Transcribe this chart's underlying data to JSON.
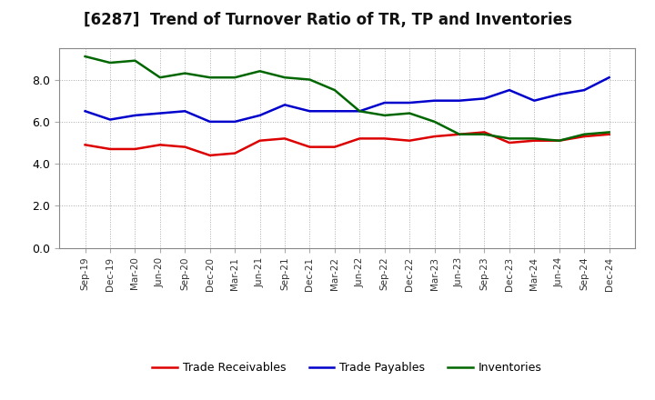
{
  "title": "[6287]  Trend of Turnover Ratio of TR, TP and Inventories",
  "x_labels": [
    "Sep-19",
    "Dec-19",
    "Mar-20",
    "Jun-20",
    "Sep-20",
    "Dec-20",
    "Mar-21",
    "Jun-21",
    "Sep-21",
    "Dec-21",
    "Mar-22",
    "Jun-22",
    "Sep-22",
    "Dec-22",
    "Mar-23",
    "Jun-23",
    "Sep-23",
    "Dec-23",
    "Mar-24",
    "Jun-24",
    "Sep-24",
    "Dec-24"
  ],
  "trade_receivables": [
    4.9,
    4.7,
    4.7,
    4.9,
    4.8,
    4.4,
    4.5,
    5.1,
    5.2,
    4.8,
    4.8,
    5.2,
    5.2,
    5.1,
    5.3,
    5.4,
    5.5,
    5.0,
    5.1,
    5.1,
    5.3,
    5.4
  ],
  "trade_payables": [
    6.5,
    6.1,
    6.3,
    6.4,
    6.5,
    6.0,
    6.0,
    6.3,
    6.8,
    6.5,
    6.5,
    6.5,
    6.9,
    6.9,
    7.0,
    7.0,
    7.1,
    7.5,
    7.0,
    7.3,
    7.5,
    8.1
  ],
  "inventories": [
    9.1,
    8.8,
    8.9,
    8.1,
    8.3,
    8.1,
    8.1,
    8.4,
    8.1,
    8.0,
    7.5,
    6.5,
    6.3,
    6.4,
    6.0,
    5.4,
    5.4,
    5.2,
    5.2,
    5.1,
    5.4,
    5.5
  ],
  "trade_receivables_color": "#dd0000",
  "trade_payables_color": "#0000cc",
  "inventories_color": "#006600",
  "ylim": [
    0,
    9.5
  ],
  "yticks": [
    0.0,
    2.0,
    4.0,
    6.0,
    8.0
  ],
  "background_color": "#ffffff",
  "plot_bg_color": "#ffffff",
  "grid_color": "#aaaaaa",
  "title_fontsize": 12,
  "linewidth": 1.8
}
